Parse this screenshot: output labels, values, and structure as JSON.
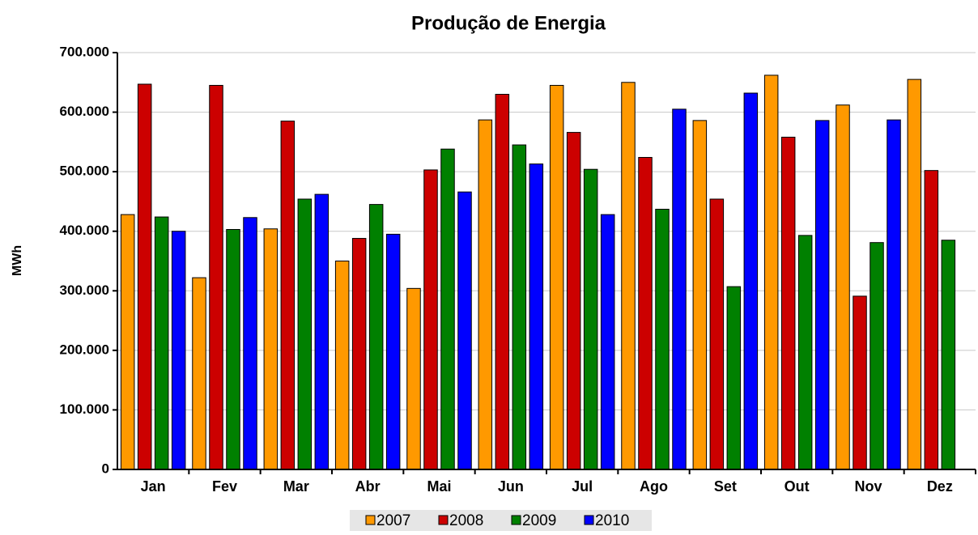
{
  "chart_data": {
    "type": "bar",
    "title": "Produção de Energia",
    "y_label": "MWh",
    "categories": [
      "Jan",
      "Fev",
      "Mar",
      "Abr",
      "Mai",
      "Jun",
      "Jul",
      "Ago",
      "Set",
      "Out",
      "Nov",
      "Dez"
    ],
    "series": [
      {
        "name": "2007",
        "color": "#ff9900",
        "values": [
          428000,
          322000,
          404000,
          350000,
          304000,
          587000,
          645000,
          650000,
          586000,
          662000,
          612000,
          655000
        ]
      },
      {
        "name": "2008",
        "color": "#cc0000",
        "values": [
          647000,
          645000,
          585000,
          388000,
          503000,
          630000,
          566000,
          524000,
          454000,
          558000,
          291000,
          502000
        ]
      },
      {
        "name": "2009",
        "color": "#008000",
        "values": [
          424000,
          403000,
          454000,
          445000,
          538000,
          545000,
          504000,
          437000,
          307000,
          393000,
          381000,
          385000
        ]
      },
      {
        "name": "2010",
        "color": "#0000ff",
        "values": [
          400000,
          423000,
          462000,
          395000,
          466000,
          513000,
          428000,
          605000,
          632000,
          586000,
          587000,
          null
        ]
      }
    ],
    "ylim": [
      0,
      700000
    ],
    "yticks": [
      0,
      {
        "value": 100000,
        "label": "100.000"
      },
      {
        "value": 200000,
        "label": "200.000"
      },
      {
        "value": 300000,
        "label": "300.000"
      },
      {
        "value": 400000,
        "label": "400.000"
      },
      {
        "value": 500000,
        "label": "500.000"
      },
      {
        "value": 600000,
        "label": "600.000"
      },
      {
        "value": 700000,
        "label": "700.000"
      }
    ],
    "grid": true,
    "legend": "bottom"
  }
}
